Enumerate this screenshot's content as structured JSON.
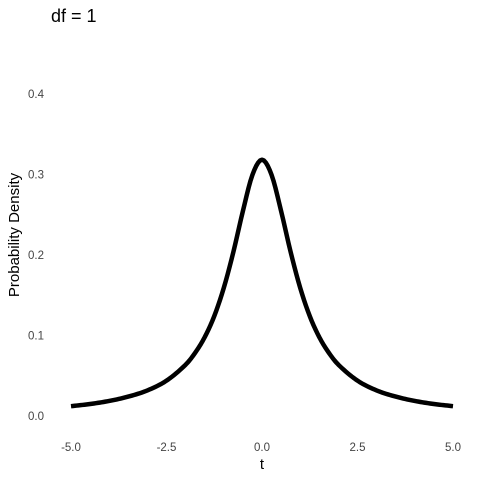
{
  "chart_data": {
    "type": "line",
    "title": "df = 1",
    "xlabel": "t",
    "ylabel": "Probability Density",
    "xlim": [
      -5,
      5
    ],
    "ylim": [
      0,
      0.4
    ],
    "xticks": [
      "-5.0",
      "-2.5",
      "0.0",
      "2.5",
      "5.0"
    ],
    "yticks": [
      "0.0",
      "0.1",
      "0.2",
      "0.3",
      "0.4"
    ],
    "grid": false,
    "line_color": "#000000",
    "series": [
      {
        "x": [
          -5,
          -4.5,
          -4,
          -3.5,
          -3,
          -2.5,
          -2,
          -1.75,
          -1.5,
          -1.25,
          -1,
          -0.75,
          -0.5,
          -0.25,
          0,
          0.25,
          0.5,
          0.75,
          1,
          1.25,
          1.5,
          1.75,
          2,
          2.5,
          3,
          3.5,
          4,
          4.5,
          5
        ],
        "values": [
          0.0122,
          0.0149,
          0.0187,
          0.0241,
          0.0318,
          0.0439,
          0.0637,
          0.0785,
          0.0979,
          0.1241,
          0.1592,
          0.2037,
          0.2546,
          0.2996,
          0.3183,
          0.2996,
          0.2546,
          0.2037,
          0.1592,
          0.1241,
          0.0979,
          0.0785,
          0.0637,
          0.0439,
          0.0318,
          0.0241,
          0.0187,
          0.0149,
          0.0122
        ]
      }
    ]
  }
}
